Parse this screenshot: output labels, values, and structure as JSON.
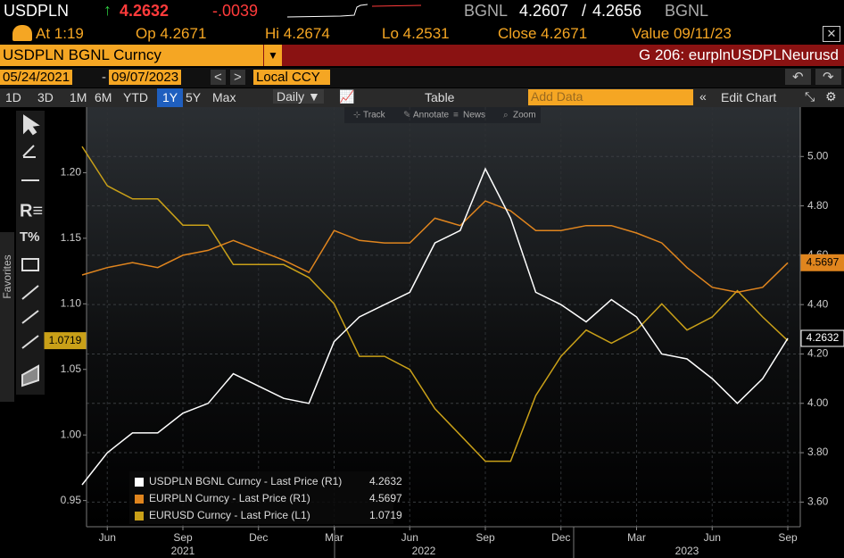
{
  "quote": {
    "ticker": "USDPLN",
    "last": "4.2632",
    "change": "-.0039",
    "source": "BGNL",
    "bid": "4.2607",
    "separator": "/",
    "ask": "4.2656"
  },
  "stats": {
    "at": "At 1:19",
    "open": "Op 4.2671",
    "high": "Hi 4.2674",
    "low": "Lo 4.2531",
    "close": "Close 4.2671",
    "value": "Value 09/11/23"
  },
  "security": "USDPLN BGNL Curncy",
  "page": "G 206: eurplnUSDPLNeurusd",
  "range": {
    "start": "05/24/2021",
    "end": "09/07/2023",
    "currency": "Local CCY"
  },
  "periods": [
    "1D",
    "3D",
    "1M",
    "6M",
    "YTD",
    "1Y",
    "5Y",
    "Max"
  ],
  "active_period": 5,
  "frequency": "Daily",
  "table": "Table",
  "add_data": "Add Data",
  "edit_chart": "Edit Chart",
  "chart_tools": [
    "Track",
    "Annotate",
    "News",
    "Zoom"
  ],
  "sidebar": "Favorites",
  "chart_data": {
    "type": "line",
    "x": [
      "2021-05",
      "2021-06",
      "2021-07",
      "2021-08",
      "2021-09",
      "2021-10",
      "2021-11",
      "2021-12",
      "2022-01",
      "2022-02",
      "2022-03",
      "2022-04",
      "2022-05",
      "2022-06",
      "2022-07",
      "2022-08",
      "2022-09",
      "2022-10",
      "2022-11",
      "2022-12",
      "2023-01",
      "2023-02",
      "2023-03",
      "2023-04",
      "2023-05",
      "2023-06",
      "2023-07",
      "2023-08",
      "2023-09"
    ],
    "xlim": [
      "2021-05",
      "2023-09"
    ],
    "xticks": [
      {
        "value": "2021-06",
        "label": "Jun"
      },
      {
        "value": "2021-09",
        "label": "Sep"
      },
      {
        "value": "2021-12",
        "label": "Dec"
      },
      {
        "value": "2022-03",
        "label": "Mar"
      },
      {
        "value": "2022-06",
        "label": "Jun"
      },
      {
        "value": "2022-09",
        "label": "Sep"
      },
      {
        "value": "2022-12",
        "label": "Dec"
      },
      {
        "value": "2023-03",
        "label": "Mar"
      },
      {
        "value": "2023-06",
        "label": "Jun"
      },
      {
        "value": "2023-09",
        "label": "Sep"
      }
    ],
    "year_labels": [
      "2021",
      "2022",
      "2023"
    ],
    "ylim": [
      0.93,
      1.25
    ],
    "yticks": [
      0.95,
      {
        "value": 1.0,
        "label": "1.00"
      },
      1.05,
      {
        "value": 1.1,
        "label": "1.10"
      },
      1.15,
      {
        "value": 1.2,
        "label": "1.20"
      }
    ],
    "y2lim": [
      3.5,
      5.2
    ],
    "y2ticks": [
      {
        "value": 3.6,
        "label": "3.60"
      },
      {
        "value": 3.8,
        "label": "3.80"
      },
      {
        "value": 4.0,
        "label": "4.00"
      },
      {
        "value": 4.2,
        "label": "4.20"
      },
      {
        "value": 4.4,
        "label": "4.40"
      },
      {
        "value": 4.6,
        "label": "4.60"
      },
      {
        "value": 4.8,
        "label": "4.80"
      },
      {
        "value": 5.0,
        "label": "5.00"
      }
    ],
    "grid": true,
    "series": [
      {
        "name": "USDPLN BGNL Curncy - Last Price (R1)",
        "color": "#ffffff",
        "axis": "y2",
        "values": [
          3.67,
          3.8,
          3.88,
          3.88,
          3.96,
          4.0,
          4.12,
          4.07,
          4.02,
          4.0,
          4.25,
          4.35,
          4.4,
          4.45,
          4.65,
          4.7,
          4.95,
          4.75,
          4.45,
          4.4,
          4.33,
          4.42,
          4.35,
          4.2,
          4.18,
          4.1,
          4.0,
          4.1,
          4.2632
        ]
      },
      {
        "name": "EURPLN Curncy - Last Price (R1)",
        "color": "#e0851e",
        "axis": "y2",
        "values": [
          4.52,
          4.55,
          4.57,
          4.55,
          4.6,
          4.62,
          4.66,
          4.62,
          4.58,
          4.53,
          4.7,
          4.66,
          4.65,
          4.65,
          4.75,
          4.72,
          4.82,
          4.78,
          4.7,
          4.7,
          4.72,
          4.72,
          4.69,
          4.65,
          4.55,
          4.47,
          4.45,
          4.47,
          4.5697
        ]
      },
      {
        "name": "EURUSD Curncy - Last Price (L1)",
        "color": "#c9a018",
        "axis": "y",
        "values": [
          1.22,
          1.19,
          1.18,
          1.18,
          1.16,
          1.16,
          1.13,
          1.13,
          1.13,
          1.12,
          1.1,
          1.06,
          1.06,
          1.05,
          1.02,
          1.0,
          0.98,
          0.98,
          1.03,
          1.06,
          1.08,
          1.07,
          1.08,
          1.1,
          1.08,
          1.09,
          1.11,
          1.09,
          1.0719
        ]
      }
    ]
  }
}
